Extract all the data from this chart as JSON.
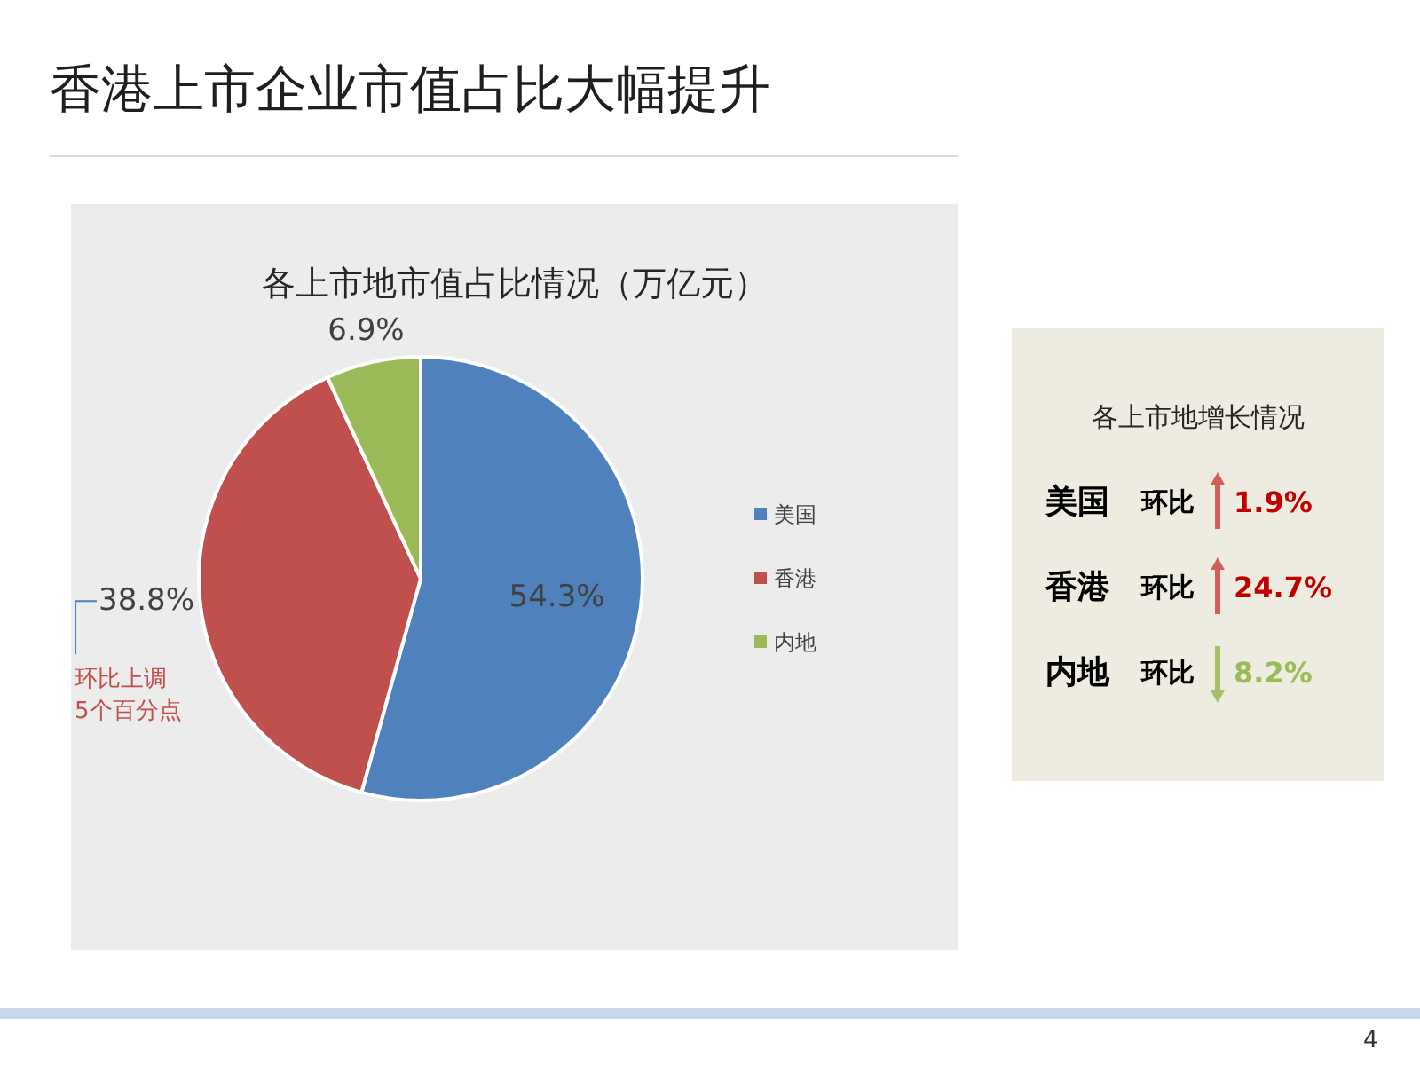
{
  "chart_data": [
    {
      "type": "pie",
      "title": "香港上市企业市值占比大幅提升",
      "subtitle": "各上市地市值占比情况（万亿元）",
      "categories": [
        "美国",
        "香港",
        "内地"
      ],
      "values": [
        54.3,
        38.8,
        6.9
      ],
      "colors": [
        "#4f81bd",
        "#c0504d",
        "#9bbb59"
      ],
      "value_labels": [
        "54.3%",
        "38.8%",
        "6.9%"
      ],
      "legend": "right",
      "annotations": [
        "环比上调\n5个百分点",
        "4"
      ]
    },
    {
      "type": "other",
      "title": "各上市地增长情况",
      "categories": [
        "美国",
        "香港",
        "内地"
      ],
      "value_labels": [
        "1.9%",
        "24.7%",
        "8.2%"
      ],
      "colors": [
        "#c00000",
        "#c00000",
        "#9bbb59"
      ],
      "annotations": [
        "环比",
        "环比",
        "环比"
      ]
    }
  ]
}
